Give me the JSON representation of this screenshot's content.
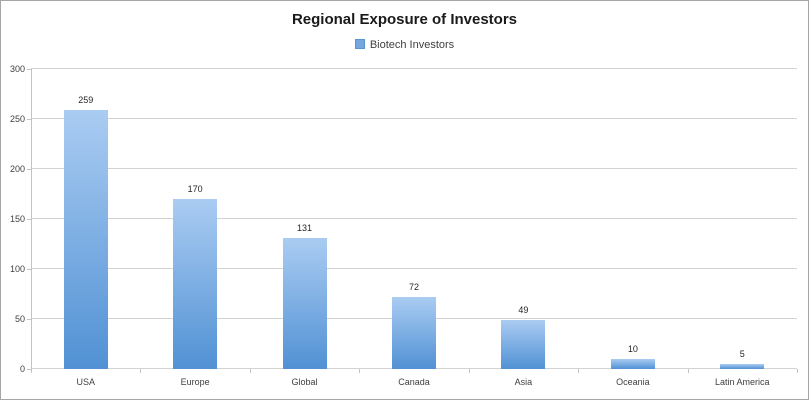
{
  "window": {
    "background": "#ffffff",
    "border_color": "#a6a6a6"
  },
  "chart_data": {
    "type": "bar",
    "title": "Regional Exposure of Investors",
    "legend": {
      "label": "Biotech Investors",
      "position": "top"
    },
    "categories": [
      "USA",
      "Europe",
      "Global",
      "Canada",
      "Asia",
      "Oceania",
      "Latin America"
    ],
    "values": [
      259,
      170,
      131,
      72,
      49,
      10,
      5
    ],
    "series_name": "Biotech Investors",
    "xlabel": "",
    "ylabel": "",
    "ylim": [
      0,
      300
    ],
    "yticks": [
      0,
      50,
      100,
      150,
      200,
      250,
      300
    ],
    "grid": true,
    "data_labels": true,
    "colors": {
      "bar_gradient_top": "#aaccf2",
      "bar_gradient_bottom": "#5191d4",
      "legend_marker": "#74a7de",
      "legend_marker_border": "#5c94cc",
      "gridline": "#d3d3d3",
      "axis_line": "#c3c3c3",
      "label_text": "#3f3f3f",
      "title_text": "#1a1a1a"
    }
  }
}
